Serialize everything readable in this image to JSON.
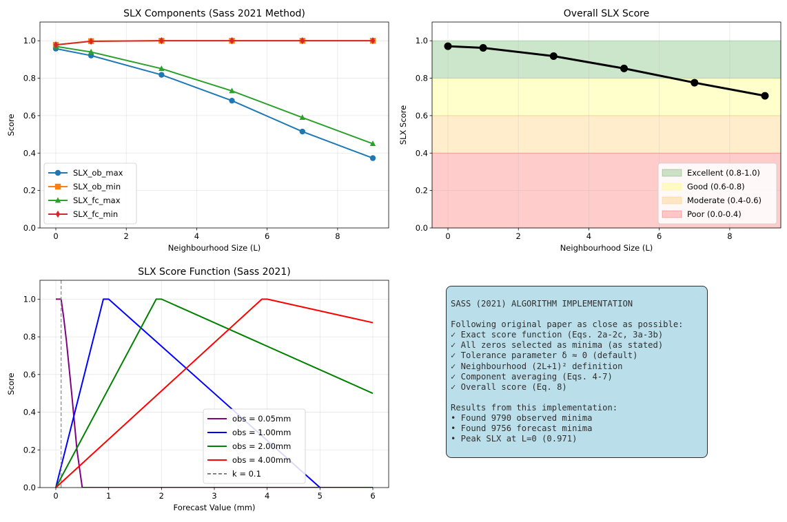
{
  "chart_data": [
    {
      "type": "line",
      "title": "SLX Components (Sass 2021 Method)",
      "xlabel": "Neighbourhood Size (L)",
      "ylabel": "Score",
      "xlim": [
        -0.45,
        9.45
      ],
      "ylim": [
        0,
        1.1
      ],
      "xticks": [
        0,
        2,
        4,
        6,
        8
      ],
      "yticks": [
        0.0,
        0.2,
        0.4,
        0.6,
        0.8,
        1.0
      ],
      "grid": true,
      "legend": "lower-left",
      "x": [
        0,
        1,
        3,
        5,
        7,
        9
      ],
      "series": [
        {
          "name": "SLX_ob_max",
          "color": "#1f77b4",
          "marker": "circle",
          "values": [
            0.958,
            0.921,
            0.818,
            0.68,
            0.515,
            0.373
          ]
        },
        {
          "name": "SLX_ob_min",
          "color": "#ff7f0e",
          "marker": "square",
          "values": [
            0.978,
            0.998,
            1.0,
            1.0,
            1.0,
            1.0
          ]
        },
        {
          "name": "SLX_fc_max",
          "color": "#2ca02c",
          "marker": "triangle",
          "values": [
            0.97,
            0.94,
            0.851,
            0.732,
            0.59,
            0.45
          ]
        },
        {
          "name": "SLX_fc_min",
          "color": "#d62728",
          "marker": "diamond",
          "values": [
            0.978,
            0.997,
            1.0,
            1.0,
            1.0,
            1.0
          ]
        }
      ]
    },
    {
      "type": "line",
      "title": "Overall SLX Score",
      "xlabel": "Neighbourhood Size (L)",
      "ylabel": "SLX Score",
      "xlim": [
        -0.45,
        9.45
      ],
      "ylim": [
        0,
        1.1
      ],
      "xticks": [
        0,
        2,
        4,
        6,
        8
      ],
      "yticks": [
        0.0,
        0.2,
        0.4,
        0.6,
        0.8,
        1.0
      ],
      "grid": true,
      "legend": "lower-right",
      "x": [
        0,
        1,
        3,
        5,
        7,
        9
      ],
      "series": [
        {
          "color": "#000000",
          "marker": "circle",
          "values": [
            0.971,
            0.962,
            0.918,
            0.852,
            0.776,
            0.706
          ]
        }
      ],
      "bands": [
        {
          "name": "Excellent (0.8-1.0)",
          "from": 0.8,
          "to": 1.0,
          "color": "#008000"
        },
        {
          "name": "Good (0.6-0.8)",
          "from": 0.6,
          "to": 0.8,
          "color": "#ffff00"
        },
        {
          "name": "Moderate (0.4-0.6)",
          "from": 0.4,
          "to": 0.6,
          "color": "#ffa500"
        },
        {
          "name": "Poor (0.0-0.4)",
          "from": 0.0,
          "to": 0.4,
          "color": "#ff0000"
        }
      ]
    },
    {
      "type": "line",
      "title": "SLX Score Function (Sass 2021)",
      "xlabel": "Forecast Value (mm)",
      "ylabel": "Score",
      "xlim": [
        -0.3,
        6.3
      ],
      "ylim": [
        0,
        1.1
      ],
      "xticks": [
        0,
        1,
        2,
        3,
        4,
        5,
        6
      ],
      "yticks": [
        0.0,
        0.2,
        0.4,
        0.6,
        0.8,
        1.0
      ],
      "grid": true,
      "legend": "lower-center",
      "series": [
        {
          "name": "obs = 0.05mm",
          "color": "#800080",
          "points": [
            [
              0,
              1
            ],
            [
              0.1,
              1
            ],
            [
              0.15,
              0.9
            ],
            [
              0.2,
              0.78
            ],
            [
              0.3,
              0.5
            ],
            [
              0.4,
              0.2
            ],
            [
              0.45,
              0.1
            ],
            [
              0.5,
              0
            ],
            [
              6,
              0
            ]
          ]
        },
        {
          "name": "obs = 1.00mm",
          "color": "#0000ff",
          "points": [
            [
              0,
              0
            ],
            [
              0.9,
              1
            ],
            [
              1.0,
              1
            ],
            [
              5.0,
              0
            ],
            [
              6,
              0
            ]
          ]
        },
        {
          "name": "obs = 2.00mm",
          "color": "#008000",
          "points": [
            [
              0,
              0
            ],
            [
              1.9,
              1
            ],
            [
              2.0,
              1
            ],
            [
              6,
              0.5
            ]
          ]
        },
        {
          "name": "obs = 4.00mm",
          "color": "#ff0000",
          "points": [
            [
              0,
              0
            ],
            [
              3.9,
              1
            ],
            [
              4.0,
              1
            ],
            [
              6,
              0.875
            ]
          ]
        }
      ],
      "vline": {
        "name": "k = 0.1",
        "x": 0.1,
        "color": "#808080"
      }
    }
  ],
  "info_box": {
    "lines": [
      "SASS (2021) ALGORITHM IMPLEMENTATION",
      "",
      "Following original paper as close as possible:",
      "✓ Exact score function (Eqs. 2a-2c, 3a-3b)",
      "✓ All zeros selected as minima (as stated)",
      "✓ Tolerance parameter δ ≈ 0 (default)",
      "✓ Neighbourhood (2L+1)² definition",
      "✓ Component averaging (Eqs. 4-7)",
      "✓ Overall score (Eq. 8)",
      "",
      "Results from this implementation:",
      "• Found 9790 observed minima",
      "• Found 9756 forecast minima",
      "• Peak SLX at L=0 (0.971)"
    ]
  }
}
